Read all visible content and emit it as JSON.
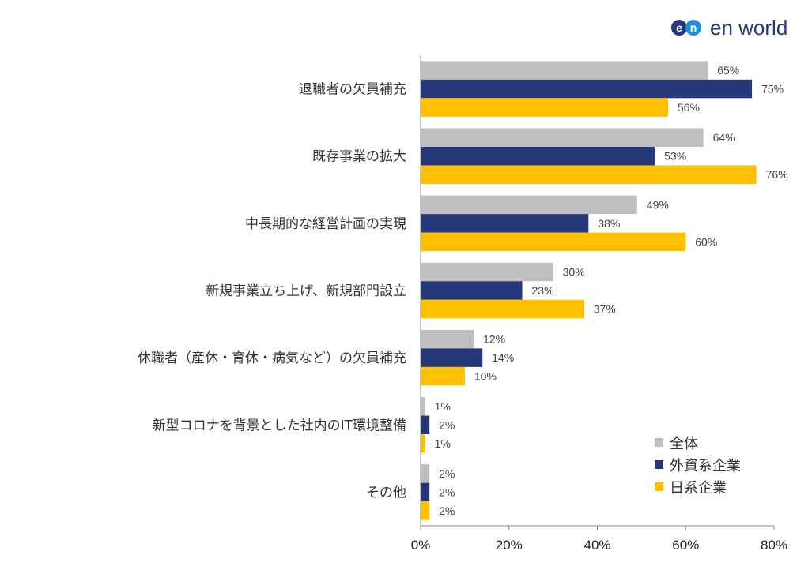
{
  "logo": {
    "mark": "en",
    "text": "en world"
  },
  "chart_data": {
    "type": "bar",
    "orientation": "horizontal",
    "categories": [
      "退職者の欠員補充",
      "既存事業の拡大",
      "中長期的な経営計画の実現",
      "新規事業立ち上げ、新規部門設立",
      "休職者（産休・育休・病気など）の欠員補充",
      "新型コロナを背景とした社内のIT環境整備",
      "その他"
    ],
    "series": [
      {
        "name": "全体",
        "color": "#bfbfbf",
        "values": [
          65,
          64,
          49,
          30,
          12,
          1,
          2
        ]
      },
      {
        "name": "外資系企業",
        "color": "#25397a",
        "values": [
          75,
          53,
          38,
          23,
          14,
          2,
          2
        ]
      },
      {
        "name": "日系企業",
        "color": "#ffc000",
        "values": [
          56,
          76,
          60,
          37,
          10,
          1,
          2
        ]
      }
    ],
    "xlim": [
      0,
      80
    ],
    "xticks": [
      0,
      20,
      40,
      60,
      80
    ],
    "tick_format": "%",
    "legend_position": "bottom-right",
    "grid": false
  }
}
